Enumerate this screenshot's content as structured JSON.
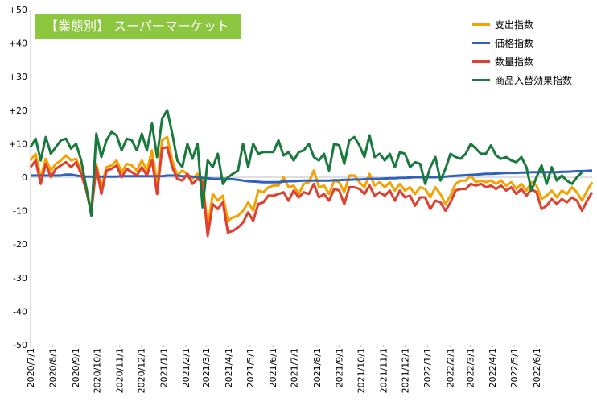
{
  "chart_data": {
    "type": "line",
    "title": "【業態別】 スーパーマーケット",
    "ylim": [
      -50,
      50
    ],
    "yticks": [
      "+50",
      "+40",
      "+30",
      "+20",
      "+10",
      "0",
      "-10",
      "-20",
      "-30",
      "-40",
      "-50"
    ],
    "xticks": [
      "2020/7/1",
      "2020/8/1",
      "2020/9/1",
      "2020/10/1",
      "2020/11/1",
      "2020/12/1",
      "2021/1/1",
      "2021/2/1",
      "2021/3/1",
      "2021/4/1",
      "2021/5/1",
      "2021/6/1",
      "2021/7/1",
      "2021/8/1",
      "2021/9/1",
      "2021/10/1",
      "2021/11/1",
      "2021/12/1",
      "2022/1/1",
      "2022/2/1",
      "2022/3/1",
      "2022/4/1",
      "2022/5/1",
      "2022/6/1"
    ],
    "xticks_week": [
      0,
      4.4,
      8.9,
      13.1,
      17.6,
      21.9,
      26.3,
      30.7,
      34.7,
      39.1,
      43.4,
      47.9,
      52.1,
      56.6,
      61.0,
      65.3,
      69.7,
      74.0,
      78.4,
      82.9,
      86.9,
      91.3,
      95.6,
      100.0
    ],
    "grid": false,
    "legend_position": "top-right",
    "series": [
      {
        "name": "支出指数",
        "color": "#f5a200",
        "values": [
          5,
          7,
          0,
          5.5,
          2,
          4,
          5,
          6.5,
          5,
          5.5,
          2,
          -3,
          -10,
          4,
          -3,
          3,
          3.5,
          5,
          1.5,
          4,
          3.5,
          2,
          5,
          2,
          8,
          -2,
          11,
          12,
          5,
          0.5,
          2,
          1,
          -0.5,
          1,
          -0.5,
          -15,
          -5,
          -7,
          -5.5,
          -13,
          -12,
          -11.5,
          -10,
          -7.5,
          -10,
          -4,
          -4.5,
          -3,
          -2.5,
          -2.5,
          0,
          -3,
          -2.5,
          -5,
          -2,
          -1.5,
          2,
          -3,
          -2.5,
          -5,
          -1,
          -1.5,
          -4.5,
          0.5,
          0.5,
          -1.5,
          -3,
          1,
          -2.5,
          -1.5,
          -3,
          -1.5,
          -4,
          -2,
          -4,
          -3,
          -5,
          -3,
          -3.5,
          -6,
          -3,
          -5,
          -8,
          -5.5,
          -2,
          -1,
          -1,
          0.5,
          -1.5,
          -1,
          -1.5,
          -1,
          -2,
          -1,
          -2.5,
          -1.5,
          -3.5,
          -2,
          -4,
          -1.5,
          -2.5,
          -6.5,
          -5.5,
          -4,
          -6,
          -4,
          -5,
          -3,
          -4.5,
          -7,
          -4,
          -1.5
        ]
      },
      {
        "name": "価格指数",
        "color": "#3060c0",
        "values": [
          0.5,
          0.5,
          0.5,
          0.5,
          0.5,
          0.5,
          0.5,
          0.8,
          0.8,
          0.5,
          0.3,
          0.2,
          0.2,
          0.2,
          0.2,
          0.2,
          0.2,
          0.2,
          0.3,
          0.3,
          0.3,
          0.3,
          0.3,
          0.3,
          0.3,
          0.3,
          0.3,
          0.5,
          0.5,
          0.5,
          0.3,
          0.3,
          0.2,
          0,
          -0.2,
          -0.3,
          -0.5,
          -0.5,
          -0.5,
          -0.5,
          -0.6,
          -0.8,
          -1,
          -1.2,
          -1.3,
          -1.4,
          -1.5,
          -1.5,
          -1.5,
          -1.5,
          -1.3,
          -1.2,
          -1.2,
          -1.1,
          -1,
          -1,
          -1,
          -1,
          -1,
          -1,
          -0.9,
          -0.9,
          -0.8,
          -0.8,
          -0.7,
          -0.7,
          -0.6,
          -0.5,
          -0.5,
          -0.5,
          -0.4,
          -0.3,
          -0.3,
          -0.2,
          -0.2,
          -0.1,
          0,
          0,
          0,
          0,
          0,
          0.1,
          0.2,
          0.3,
          0.4,
          0.5,
          0.6,
          0.7,
          0.8,
          0.9,
          1,
          1,
          1.1,
          1.2,
          1.3,
          1.3,
          1.3,
          1.4,
          1.4,
          1.5,
          1.5,
          1.5,
          1.5,
          1.5,
          1.5,
          1.6,
          1.6,
          1.7,
          1.8,
          1.8,
          1.9,
          2
        ]
      },
      {
        "name": "数量指数",
        "color": "#e04030",
        "values": [
          3,
          5,
          -2,
          4,
          0,
          2.5,
          3.5,
          4.5,
          3,
          4.5,
          1,
          -4,
          -10.5,
          3,
          -5,
          2,
          2.5,
          3.5,
          0,
          2.5,
          1.5,
          0.5,
          3,
          0.5,
          5,
          -5,
          8.5,
          9,
          3,
          -0.5,
          -1,
          1,
          -2,
          -0.5,
          -1.5,
          -17.5,
          -8,
          -9.5,
          -7.5,
          -16.5,
          -16,
          -15,
          -13.5,
          -10.5,
          -13,
          -8,
          -7.5,
          -5.5,
          -5.5,
          -5,
          -4.5,
          -7,
          -4,
          -6,
          -4.5,
          -5,
          -2,
          -6,
          -5,
          -7,
          -3.5,
          -4,
          -8,
          -3,
          -3,
          -3.5,
          -5,
          -2.5,
          -5.5,
          -4.5,
          -5.5,
          -4,
          -7,
          -4,
          -6,
          -5.5,
          -8.5,
          -6,
          -6,
          -9.5,
          -7,
          -7.5,
          -10,
          -7.5,
          -4,
          -3.5,
          -3.5,
          -2,
          -2.5,
          -2,
          -3,
          -2.5,
          -3.5,
          -2.5,
          -4,
          -3,
          -5,
          -3.5,
          -5.5,
          -3.5,
          -4.5,
          -9.5,
          -8.5,
          -6.5,
          -8,
          -6.5,
          -7.5,
          -6,
          -7,
          -10,
          -7,
          -4.5
        ]
      },
      {
        "name": "商品入替効果指数",
        "color": "#1a7a3e",
        "values": [
          9,
          11.5,
          5,
          12,
          7,
          9,
          11,
          11.5,
          8.5,
          10,
          5,
          -3,
          -11.5,
          13,
          6,
          11,
          13.5,
          12.5,
          8,
          11.5,
          11,
          8,
          13,
          8,
          16,
          6,
          17.5,
          20,
          13,
          5,
          3,
          10,
          5.5,
          10,
          -9,
          5,
          3,
          7,
          -2,
          0,
          1,
          2,
          10,
          3,
          10,
          7,
          7.5,
          7.5,
          7.5,
          11,
          6.5,
          7.5,
          5,
          7.5,
          8,
          10,
          6,
          5,
          7,
          2,
          10,
          9.5,
          4,
          11,
          12,
          9.5,
          6,
          12.5,
          6,
          7,
          5,
          7,
          3,
          7.5,
          7,
          3,
          4.5,
          4,
          -2,
          3,
          6,
          -1,
          2.5,
          7,
          6,
          5.5,
          7,
          10,
          8.5,
          7,
          7,
          9.5,
          6.5,
          5.5,
          6,
          5,
          4.5,
          6,
          3,
          -4,
          0,
          3.5,
          -2,
          3,
          -1,
          0.5,
          -1,
          -2,
          0,
          1.5
        ]
      }
    ]
  }
}
